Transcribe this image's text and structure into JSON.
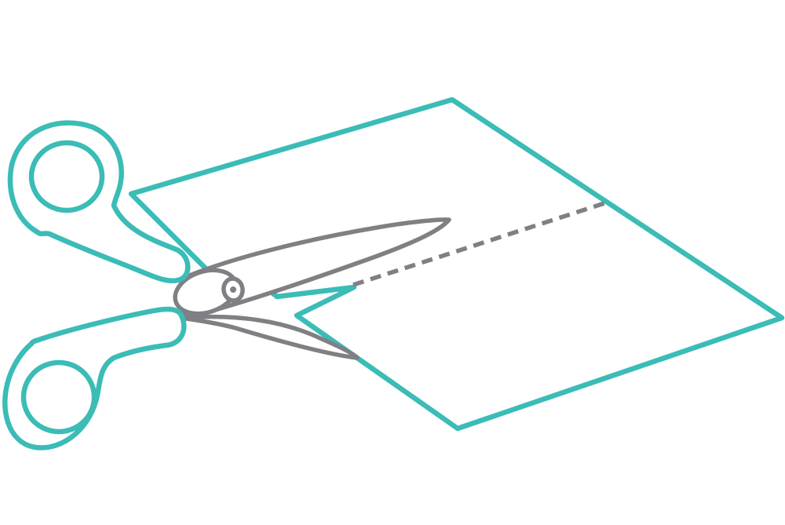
{
  "illustration": {
    "subject": "scissors-cutting-paper",
    "colors": {
      "accent": "#3BBCB6",
      "metal": "#807F84",
      "background": "#FFFFFF"
    }
  }
}
